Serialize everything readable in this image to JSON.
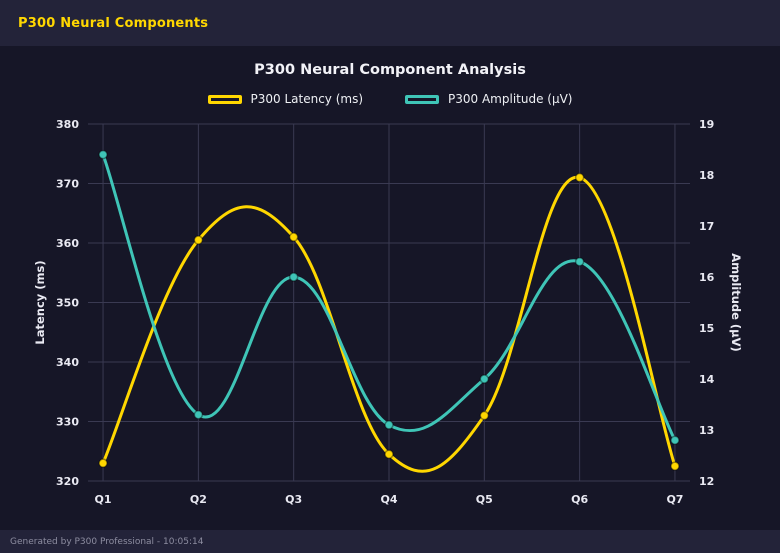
{
  "header": {
    "title": "P300 Neural Components"
  },
  "footer": {
    "text": "Generated by P300 Professional - 10:05:14"
  },
  "colors": {
    "page_background": "#232339",
    "chart_background": "#161627",
    "header_text": "#ffd700",
    "grid": "#3a3a52",
    "text": "#e9e9f2",
    "muted_text": "#8d8da0"
  },
  "chart_data": {
    "type": "line",
    "title": "P300 Neural Component Analysis",
    "categories": [
      "Q1",
      "Q2",
      "Q3",
      "Q4",
      "Q5",
      "Q6",
      "Q7"
    ],
    "series": [
      {
        "name": "P300 Latency (ms)",
        "axis": "left",
        "color": "#ffd700",
        "values": [
          323,
          360.5,
          361,
          324.5,
          331,
          371,
          322.5
        ]
      },
      {
        "name": "P300 Amplitude (μV)",
        "axis": "right",
        "color": "#3fc5b7",
        "values": [
          18.4,
          13.3,
          16.0,
          13.1,
          14.0,
          16.3,
          12.8
        ]
      }
    ],
    "y_left": {
      "label": "Latency (ms)",
      "min": 320,
      "max": 380,
      "tick_step": 10
    },
    "y_right": {
      "label": "Amplitude (μV)",
      "min": 12,
      "max": 19,
      "tick_step": 1
    },
    "legend_position": "top",
    "grid": true,
    "smooth": true
  }
}
